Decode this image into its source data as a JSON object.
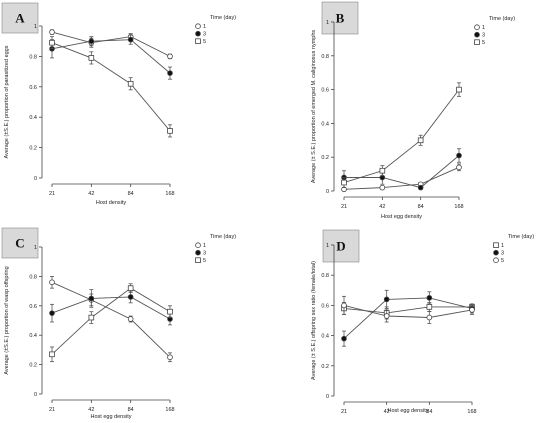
{
  "chart_data": [
    {
      "id": "A",
      "type": "line",
      "panel_label": "A",
      "ylabel": "Average (±S.E.) proportion of parasitized eggs",
      "xlabel": "Host density",
      "categories": [
        "21",
        "42",
        "84",
        "168"
      ],
      "ylim": [
        0,
        1
      ],
      "yticks": [
        "0",
        "0.2",
        "0.4",
        "0.6",
        "0.8",
        "1"
      ],
      "legend_title": "Time (day)",
      "legend_position": "top-right",
      "series": [
        {
          "name": "1",
          "marker": "open-circle",
          "values": [
            0.96,
            0.89,
            0.93,
            0.8
          ],
          "err": [
            0.015,
            0.03,
            0.02,
            0.015
          ]
        },
        {
          "name": "3",
          "marker": "filled-circle",
          "values": [
            0.85,
            0.9,
            0.91,
            0.69
          ],
          "err": [
            0.06,
            0.03,
            0.03,
            0.04
          ]
        },
        {
          "name": "5",
          "marker": "open-square",
          "values": [
            0.89,
            0.79,
            0.62,
            0.31
          ],
          "err": [
            0.04,
            0.04,
            0.04,
            0.04
          ]
        }
      ]
    },
    {
      "id": "B",
      "type": "line",
      "panel_label": "B",
      "ylabel": "Average (± S.E.) proportion of emerged M. caliginosus nymphs",
      "xlabel": "Host egg density",
      "categories": [
        "21",
        "42",
        "84",
        "168"
      ],
      "ylim": [
        0,
        1
      ],
      "yticks": [
        "0",
        "0.2",
        "0.4",
        "0.6",
        "0.8",
        "1"
      ],
      "legend_title": "Time (day)",
      "legend_position": "top-right",
      "series": [
        {
          "name": "1",
          "marker": "open-circle",
          "values": [
            0.01,
            0.02,
            0.04,
            0.14
          ],
          "err": [
            0.01,
            0.01,
            0.01,
            0.02
          ]
        },
        {
          "name": "3",
          "marker": "filled-circle",
          "values": [
            0.08,
            0.08,
            0.02,
            0.21
          ],
          "err": [
            0.04,
            0.04,
            0.01,
            0.04
          ]
        },
        {
          "name": "5",
          "marker": "open-square",
          "values": [
            0.05,
            0.12,
            0.3,
            0.6
          ],
          "err": [
            0.03,
            0.03,
            0.03,
            0.04
          ]
        }
      ]
    },
    {
      "id": "C",
      "type": "line",
      "panel_label": "C",
      "ylabel": "Average (±S.E.) proportion of wasp offspring",
      "xlabel": "Host egg density",
      "categories": [
        "21",
        "42",
        "84",
        "168"
      ],
      "ylim": [
        0,
        1
      ],
      "yticks": [
        "0",
        "0.2",
        "0.4",
        "0.6",
        "0.8",
        "1"
      ],
      "legend_title": "Time (day)",
      "legend_position": "top-right",
      "series": [
        {
          "name": "1",
          "marker": "open-circle",
          "values": [
            0.76,
            0.64,
            0.51,
            0.25
          ],
          "err": [
            0.04,
            0.04,
            0.02,
            0.03
          ]
        },
        {
          "name": "3",
          "marker": "filled-circle",
          "values": [
            0.55,
            0.65,
            0.66,
            0.51
          ],
          "err": [
            0.06,
            0.06,
            0.04,
            0.04
          ]
        },
        {
          "name": "5",
          "marker": "open-square",
          "values": [
            0.27,
            0.52,
            0.72,
            0.56
          ],
          "err": [
            0.05,
            0.04,
            0.03,
            0.04
          ]
        }
      ]
    },
    {
      "id": "D",
      "type": "line",
      "panel_label": "D",
      "ylabel": "Average (± S.E.) offspring sex ratio (female/total)",
      "xlabel": "Host egg density",
      "categories": [
        "21",
        "42",
        "84",
        "168"
      ],
      "ylim": [
        0,
        1
      ],
      "yticks": [
        "0",
        "0.2",
        "0.4",
        "0.6",
        "0.8",
        "1"
      ],
      "legend_title": "Time (day)",
      "legend_position": "top-right",
      "series": [
        {
          "name": "1",
          "marker": "open-square",
          "values": [
            0.58,
            0.55,
            0.59,
            0.59
          ],
          "err": [
            0.04,
            0.04,
            0.03,
            0.02
          ]
        },
        {
          "name": "3",
          "marker": "filled-circle",
          "values": [
            0.38,
            0.64,
            0.65,
            0.58
          ],
          "err": [
            0.05,
            0.06,
            0.04,
            0.03
          ]
        },
        {
          "name": "5",
          "marker": "open-circle",
          "values": [
            0.6,
            0.53,
            0.52,
            0.57
          ],
          "err": [
            0.06,
            0.04,
            0.04,
            0.03
          ]
        }
      ]
    }
  ]
}
